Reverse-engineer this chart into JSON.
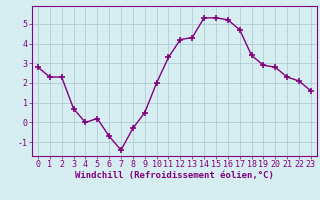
{
  "x": [
    0,
    1,
    2,
    3,
    4,
    5,
    6,
    7,
    8,
    9,
    10,
    11,
    12,
    13,
    14,
    15,
    16,
    17,
    18,
    19,
    20,
    21,
    22,
    23
  ],
  "y": [
    2.8,
    2.3,
    2.3,
    0.7,
    0.0,
    0.2,
    -0.7,
    -1.4,
    -0.3,
    0.5,
    2.0,
    3.3,
    4.2,
    4.3,
    5.3,
    5.3,
    5.2,
    4.7,
    3.4,
    2.9,
    2.8,
    2.3,
    2.1,
    1.6
  ],
  "line_color": "#800080",
  "marker": "+",
  "markersize": 4,
  "markeredgewidth": 1.2,
  "linewidth": 1.0,
  "bg_color": "#d6eef2",
  "grid_color": "#b0cdd4",
  "xlabel": "Windchill (Refroidissement éolien,°C)",
  "xlabel_fontsize": 6.5,
  "tick_fontsize": 6.0,
  "xlim": [
    -0.5,
    23.5
  ],
  "ylim": [
    -1.7,
    5.9
  ],
  "yticks": [
    -1,
    0,
    1,
    2,
    3,
    4,
    5
  ],
  "xticks": [
    0,
    1,
    2,
    3,
    4,
    5,
    6,
    7,
    8,
    9,
    10,
    11,
    12,
    13,
    14,
    15,
    16,
    17,
    18,
    19,
    20,
    21,
    22,
    23
  ],
  "spine_color": "#800080"
}
